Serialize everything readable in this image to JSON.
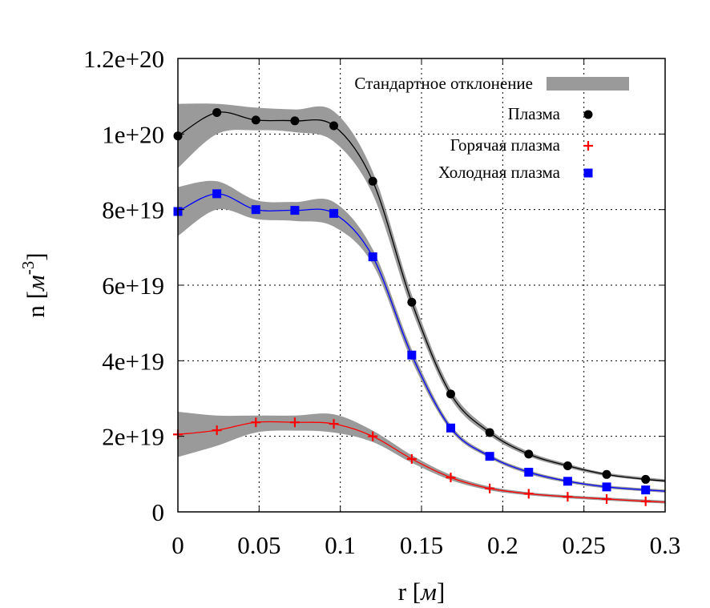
{
  "chart_data": {
    "type": "line",
    "xlabel": "r [",
    "xlabel_unit": "м",
    "xlabel_end": "]",
    "ylabel": "n [",
    "ylabel_unit": "м",
    "ylabel_sup": "-3",
    "ylabel_end": "]",
    "xlim": [
      0,
      0.3
    ],
    "ylim": [
      0,
      1.2e+20
    ],
    "x_ticks": [
      0,
      0.05,
      0.1,
      0.15,
      0.2,
      0.25,
      0.3
    ],
    "x_tick_labels": [
      "0",
      "0.05",
      "0.1",
      "0.15",
      "0.2",
      "0.25",
      "0.3"
    ],
    "y_ticks": [
      0,
      2e+19,
      4e+19,
      6e+19,
      8e+19,
      1e+20,
      1.2e+20
    ],
    "y_tick_labels": [
      "0",
      "2e+19",
      "4e+19",
      "6e+19",
      "8e+19",
      "1e+20",
      "1.2e+20"
    ],
    "grid": true,
    "legend_position": "top-right",
    "legend": {
      "std": "Стандартное отклонение",
      "plasma": "Плазма",
      "hot": "Горячая плазма",
      "cold": "Холодная плазма"
    },
    "x": [
      0,
      0.024,
      0.048,
      0.072,
      0.096,
      0.12,
      0.144,
      0.168,
      0.192,
      0.216,
      0.24,
      0.264,
      0.288
    ],
    "series": [
      {
        "name": "Плазма",
        "key": "plasma",
        "color": "#000000",
        "marker": "circle",
        "values": [
          9.95e+19,
          1.057e+20,
          1.037e+20,
          1.035e+20,
          1.022e+20,
          8.75e+19,
          5.55e+19,
          3.12e+19,
          2.1e+19,
          1.53e+19,
          1.22e+19,
          9.9e+18,
          8.6e+18
        ],
        "band": [
          [
            0,
            9.1e+19,
            1.08e+20
          ],
          [
            0.024,
            1e+20,
            1.08e+20
          ],
          [
            0.048,
            1.01e+20,
            1.07e+20
          ],
          [
            0.072,
            1.005e+20,
            1.065e+20
          ],
          [
            0.096,
            9.8e+19,
            1.06e+20
          ],
          [
            0.12,
            8.4e+19,
            9e+19
          ],
          [
            0.144,
            5.35e+19,
            5.75e+19
          ],
          [
            0.168,
            3e+19,
            3.25e+19
          ],
          [
            0.192,
            2.02e+19,
            2.18e+19
          ],
          [
            0.216,
            1.47e+19,
            1.59e+19
          ],
          [
            0.24,
            1.17e+19,
            1.27e+19
          ],
          [
            0.264,
            9.5e+18,
            1.03e+19
          ],
          [
            0.3,
            7.8e+18,
            8.6e+18
          ]
        ]
      },
      {
        "name": "Горячая плазма",
        "key": "hot",
        "color": "#ff0000",
        "marker": "plus",
        "values": [
          2.05e+19,
          2.16e+19,
          2.37e+19,
          2.37e+19,
          2.33e+19,
          2e+19,
          1.4e+19,
          9.1e+18,
          6.2e+18,
          4.8e+18,
          4e+18,
          3.4e+18,
          2.8e+18
        ],
        "band": [
          [
            0,
            1.45e+19,
            2.65e+19
          ],
          [
            0.024,
            1.75e+19,
            2.55e+19
          ],
          [
            0.048,
            2.1e+19,
            2.55e+19
          ],
          [
            0.072,
            2.15e+19,
            2.55e+19
          ],
          [
            0.096,
            2.1e+19,
            2.58e+19
          ],
          [
            0.12,
            1.85e+19,
            2.15e+19
          ],
          [
            0.144,
            1.3e+19,
            1.5e+19
          ],
          [
            0.168,
            8.4e+18,
            9.8e+18
          ],
          [
            0.192,
            5.7e+18,
            6.7e+18
          ],
          [
            0.216,
            4.4e+18,
            5.2e+18
          ],
          [
            0.24,
            3.6e+18,
            4.4e+18
          ],
          [
            0.264,
            3e+18,
            3.8e+18
          ],
          [
            0.3,
            2.2e+18,
            3e+18
          ]
        ]
      },
      {
        "name": "Холодная плазма",
        "key": "cold",
        "color": "#0000ff",
        "marker": "square",
        "values": [
          7.95e+19,
          8.42e+19,
          8e+19,
          7.98e+19,
          7.9e+19,
          6.75e+19,
          4.15e+19,
          2.22e+19,
          1.47e+19,
          1.05e+19,
          8.1e+18,
          6.6e+18,
          5.8e+18
        ],
        "band": [
          [
            0,
            7.3e+19,
            8.6e+19
          ],
          [
            0.024,
            8e+19,
            8.75e+19
          ],
          [
            0.048,
            7.75e+19,
            8.25e+19
          ],
          [
            0.072,
            7.7e+19,
            8.2e+19
          ],
          [
            0.096,
            7.55e+19,
            8.2e+19
          ],
          [
            0.12,
            6.55e+19,
            6.95e+19
          ],
          [
            0.144,
            4e+19,
            4.3e+19
          ],
          [
            0.168,
            2.15e+19,
            2.3e+19
          ],
          [
            0.192,
            1.42e+19,
            1.52e+19
          ],
          [
            0.216,
            1e+19,
            1.1e+19
          ],
          [
            0.24,
            7.7e+18,
            8.5e+18
          ],
          [
            0.264,
            6.2e+18,
            7e+18
          ],
          [
            0.3,
            5.1e+18,
            5.9e+18
          ]
        ]
      }
    ],
    "band_color": "#9a9a9a"
  }
}
